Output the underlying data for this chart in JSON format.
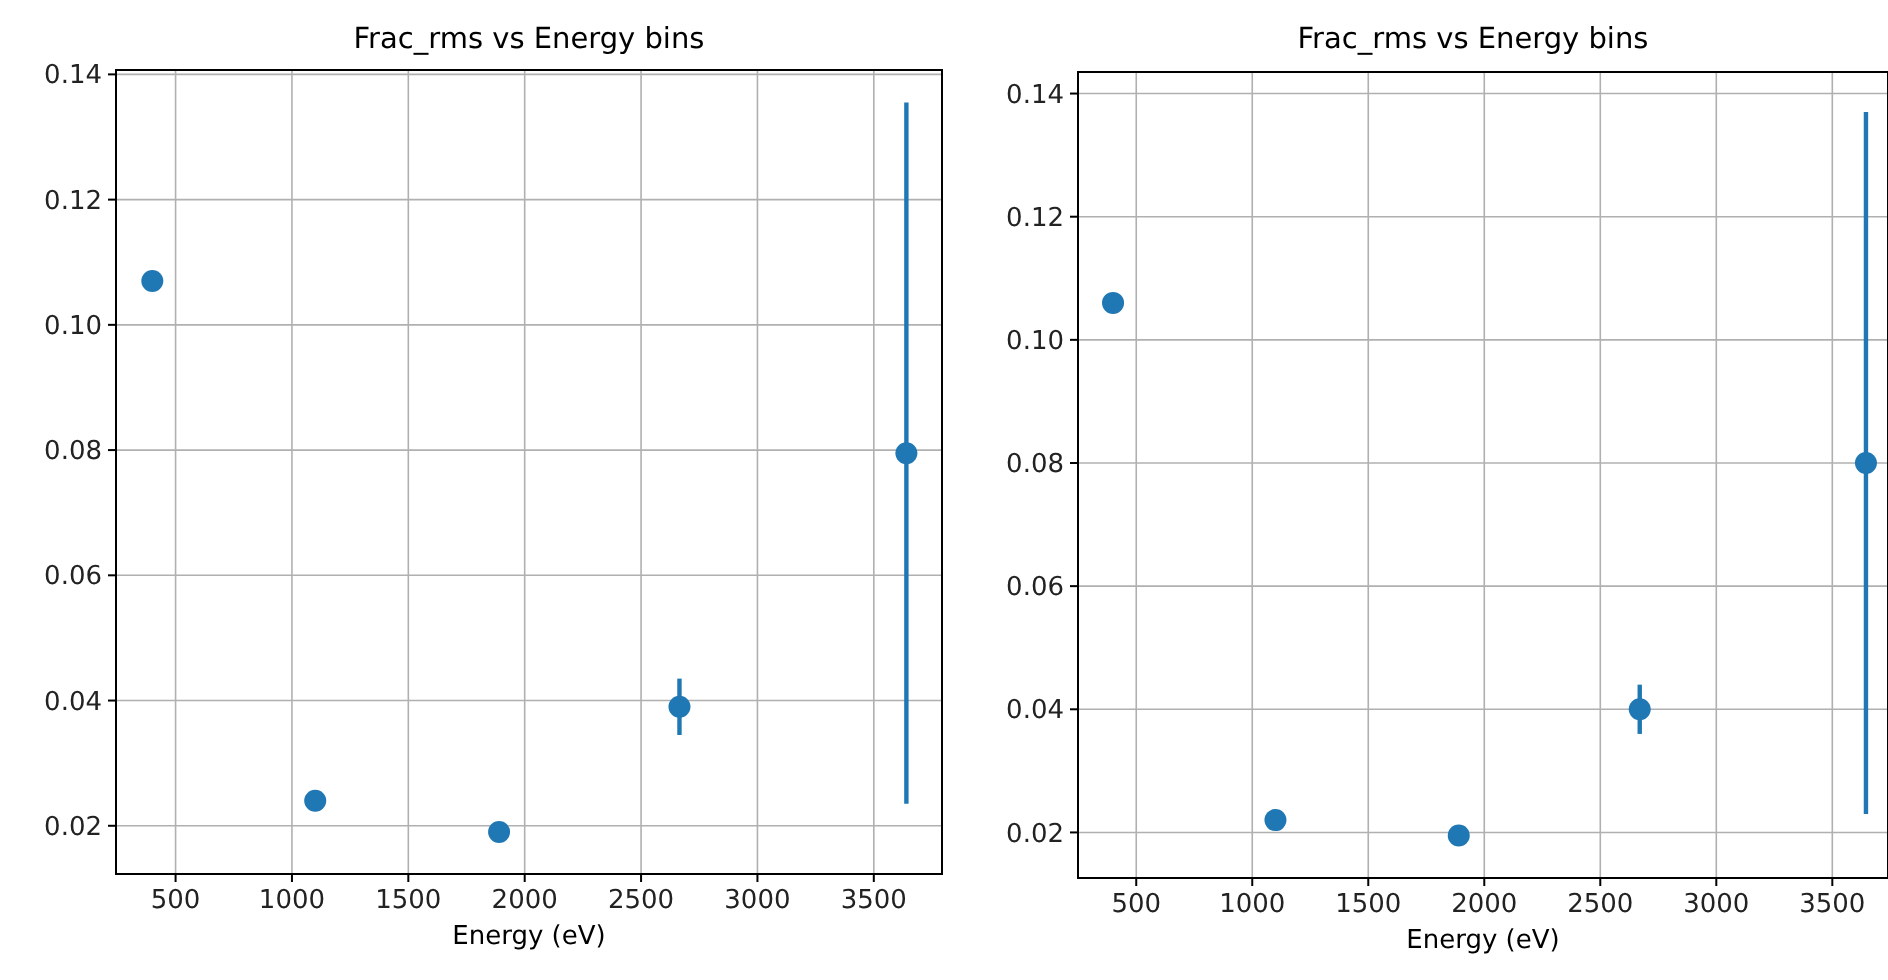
{
  "chart_data": [
    {
      "type": "scatter",
      "title": "Frac_rms vs Energy bins",
      "xlabel": "Energy (eV)",
      "x": [
        400,
        1100,
        1890,
        2665,
        3640
      ],
      "series": [
        {
          "color": "#1f77b4",
          "values": [
            0.107,
            0.024,
            0.019,
            0.039,
            0.0795
          ],
          "errors": [
            null,
            null,
            null,
            0.0045,
            0.056
          ]
        }
      ],
      "xlim": [
        244,
        3793
      ],
      "ylim": [
        0.0123,
        0.1407
      ],
      "xticks": [
        500,
        1000,
        1500,
        2000,
        2500,
        3000,
        3500
      ],
      "yticks": [
        {
          "value": 0.02,
          "label": "0.02"
        },
        {
          "value": 0.04,
          "label": "0.04"
        },
        {
          "value": 0.06,
          "label": "0.06"
        },
        {
          "value": 0.08,
          "label": "0.08"
        },
        {
          "value": 0.1,
          "label": "0.10"
        },
        {
          "value": 0.12,
          "label": "0.12"
        },
        {
          "value": 0.14,
          "label": "0.14"
        }
      ],
      "grid": true,
      "marker": "circle"
    },
    {
      "type": "scatter",
      "title": "Frac_rms vs Energy bins",
      "xlabel": "Energy (eV)",
      "x": [
        400,
        1100,
        1890,
        2670,
        3645
      ],
      "series": [
        {
          "color": "#1f77b4",
          "values": [
            0.106,
            0.022,
            0.0195,
            0.04,
            0.08
          ],
          "errors": [
            null,
            null,
            null,
            0.004,
            0.057
          ]
        }
      ],
      "xlim": [
        249,
        3740
      ],
      "ylim": [
        0.0126,
        0.1435
      ],
      "xticks": [
        500,
        1000,
        1500,
        2000,
        2500,
        3000,
        3500
      ],
      "yticks": [
        {
          "value": 0.02,
          "label": "0.02"
        },
        {
          "value": 0.04,
          "label": "0.04"
        },
        {
          "value": 0.06,
          "label": "0.06"
        },
        {
          "value": 0.08,
          "label": "0.08"
        },
        {
          "value": 0.1,
          "label": "0.10"
        },
        {
          "value": 0.12,
          "label": "0.12"
        },
        {
          "value": 0.14,
          "label": "0.14"
        }
      ],
      "grid": true,
      "marker": "circle"
    }
  ]
}
